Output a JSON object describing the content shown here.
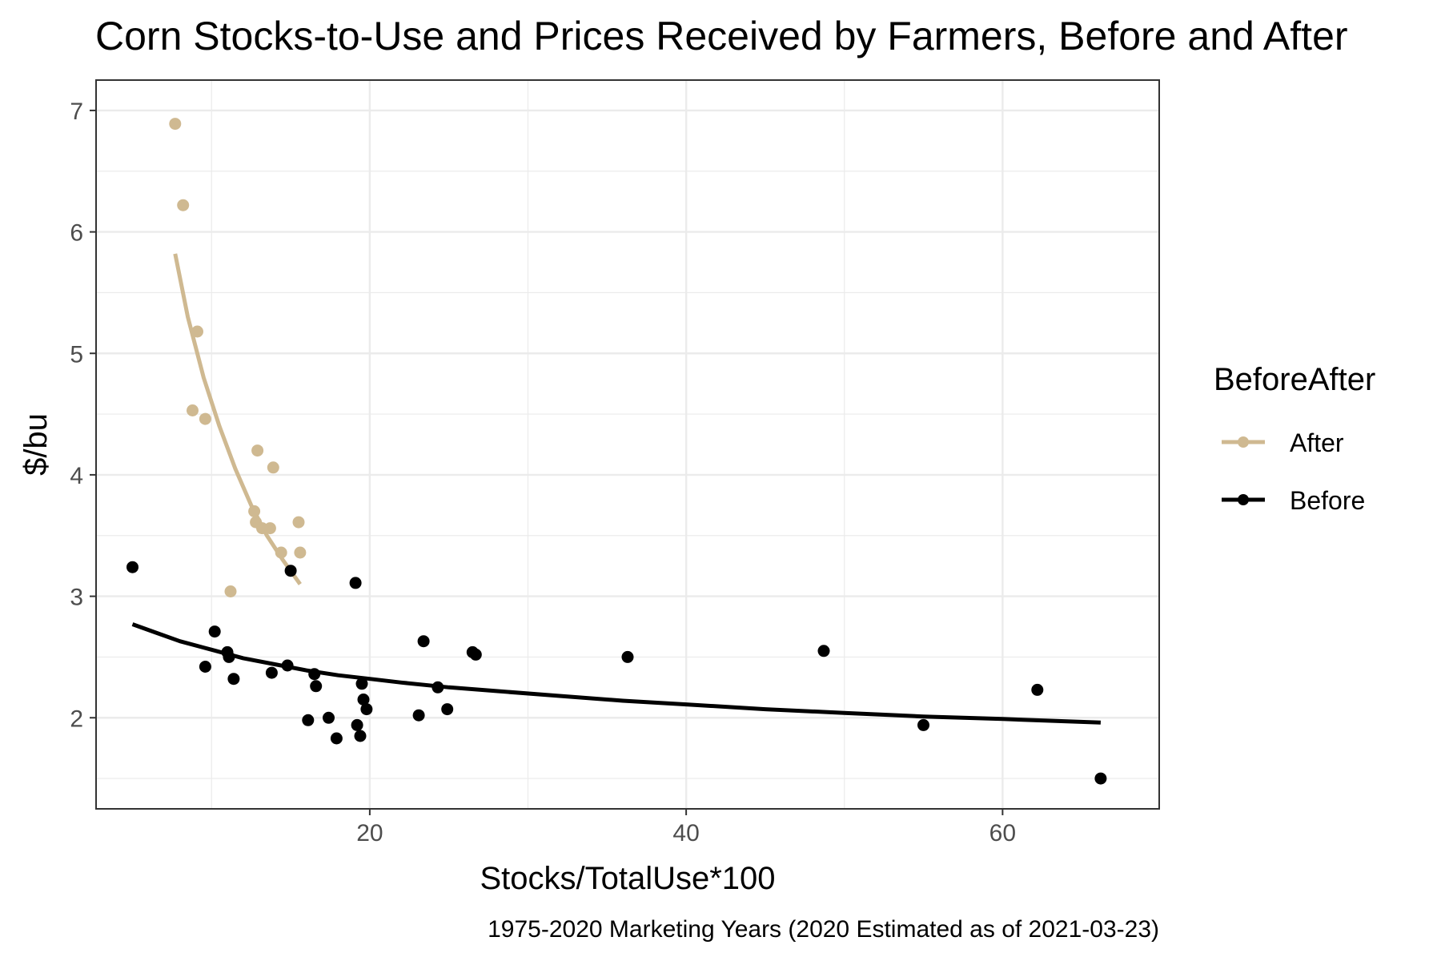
{
  "chart_data": {
    "type": "scatter",
    "title": "Corn Stocks-to-Use and Prices Received by Farmers, Before and After",
    "xlabel": "Stocks/TotalUse*100",
    "ylabel": "$/bu",
    "caption": "1975-2020 Marketing Years (2020 Estimated as of 2021-03-23)",
    "xlim": [
      2.7,
      69.9
    ],
    "ylim": [
      1.25,
      7.25
    ],
    "x_ticks": [
      20,
      40,
      60
    ],
    "y_ticks": [
      2,
      3,
      4,
      5,
      6,
      7
    ],
    "grid": true,
    "legend": {
      "title": "BeforeAfter",
      "position": "right"
    },
    "series": [
      {
        "name": "After",
        "color": "#CFB991",
        "points": [
          [
            7.7,
            6.89
          ],
          [
            8.2,
            6.22
          ],
          [
            8.8,
            4.53
          ],
          [
            9.1,
            5.18
          ],
          [
            9.6,
            4.46
          ],
          [
            11.2,
            3.04
          ],
          [
            12.7,
            3.7
          ],
          [
            12.8,
            3.61
          ],
          [
            12.9,
            4.2
          ],
          [
            13.2,
            3.56
          ],
          [
            13.7,
            3.56
          ],
          [
            13.9,
            4.06
          ],
          [
            14.4,
            3.36
          ],
          [
            15.5,
            3.61
          ],
          [
            15.6,
            3.36
          ]
        ],
        "trend": [
          [
            7.7,
            5.82
          ],
          [
            8.5,
            5.3
          ],
          [
            9.5,
            4.8
          ],
          [
            10.5,
            4.4
          ],
          [
            11.5,
            4.05
          ],
          [
            12.5,
            3.75
          ],
          [
            13.5,
            3.5
          ],
          [
            14.5,
            3.3
          ],
          [
            15.6,
            3.1
          ]
        ]
      },
      {
        "name": "Before",
        "color": "#000000",
        "points": [
          [
            5.0,
            3.24
          ],
          [
            9.6,
            2.42
          ],
          [
            10.2,
            2.71
          ],
          [
            11.0,
            2.54
          ],
          [
            11.1,
            2.5
          ],
          [
            11.4,
            2.32
          ],
          [
            13.8,
            2.37
          ],
          [
            14.8,
            2.43
          ],
          [
            15.0,
            3.21
          ],
          [
            16.1,
            1.98
          ],
          [
            16.5,
            2.36
          ],
          [
            16.6,
            2.26
          ],
          [
            17.4,
            2.0
          ],
          [
            17.9,
            1.83
          ],
          [
            19.1,
            3.11
          ],
          [
            19.2,
            1.94
          ],
          [
            19.4,
            1.85
          ],
          [
            19.5,
            2.28
          ],
          [
            19.6,
            2.15
          ],
          [
            19.8,
            2.07
          ],
          [
            23.1,
            2.02
          ],
          [
            23.4,
            2.63
          ],
          [
            24.3,
            2.25
          ],
          [
            24.9,
            2.07
          ],
          [
            26.5,
            2.54
          ],
          [
            26.7,
            2.52
          ],
          [
            36.3,
            2.5
          ],
          [
            48.7,
            2.55
          ],
          [
            55.0,
            1.94
          ],
          [
            62.2,
            2.23
          ],
          [
            66.2,
            1.5
          ]
        ],
        "trend": [
          [
            5.0,
            2.77
          ],
          [
            6.5,
            2.7
          ],
          [
            8.0,
            2.63
          ],
          [
            10.0,
            2.56
          ],
          [
            12.0,
            2.49
          ],
          [
            14.0,
            2.44
          ],
          [
            16.0,
            2.39
          ],
          [
            18.0,
            2.35
          ],
          [
            20.0,
            2.32
          ],
          [
            22.0,
            2.29
          ],
          [
            25.0,
            2.25
          ],
          [
            28.0,
            2.22
          ],
          [
            32.0,
            2.18
          ],
          [
            36.0,
            2.14
          ],
          [
            40.0,
            2.11
          ],
          [
            45.0,
            2.07
          ],
          [
            50.0,
            2.04
          ],
          [
            55.0,
            2.01
          ],
          [
            60.0,
            1.99
          ],
          [
            66.2,
            1.96
          ]
        ]
      }
    ]
  }
}
